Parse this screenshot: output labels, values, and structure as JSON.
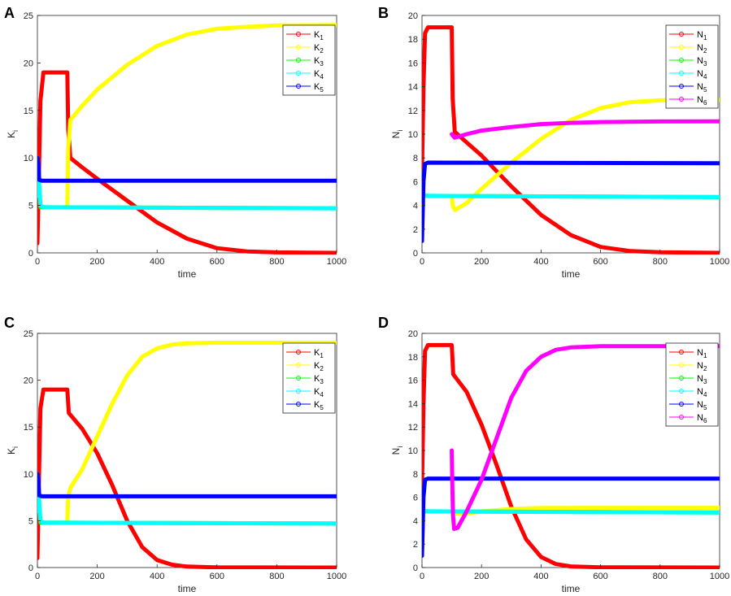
{
  "chart_data": [
    {
      "panel": "A",
      "type": "line",
      "xlabel": "time",
      "ylabel": "K",
      "ylabel_sub": "i",
      "xlim": [
        0,
        1000
      ],
      "ylim": [
        0,
        25
      ],
      "xticks": [
        "0",
        "200",
        "400",
        "600",
        "800",
        "1000"
      ],
      "yticks": [
        "0",
        "5",
        "10",
        "15",
        "20",
        "25"
      ],
      "legend_position": "top-right",
      "series": [
        {
          "name": "K",
          "sub": "1",
          "color": "#ff0000",
          "points": [
            [
              0,
              1
            ],
            [
              5,
              8
            ],
            [
              10,
              16
            ],
            [
              20,
              19
            ],
            [
              100,
              19
            ],
            [
              103,
              13
            ],
            [
              110,
              10
            ],
            [
              150,
              9
            ],
            [
              200,
              7.8
            ],
            [
              300,
              5.5
            ],
            [
              400,
              3.2
            ],
            [
              500,
              1.5
            ],
            [
              600,
              0.5
            ],
            [
              700,
              0.15
            ],
            [
              800,
              0.05
            ],
            [
              1000,
              0
            ]
          ]
        },
        {
          "name": "K",
          "sub": "2",
          "color": "#ffff00",
          "points": [
            [
              100,
              5
            ],
            [
              103,
              11
            ],
            [
              110,
              14
            ],
            [
              150,
              15.5
            ],
            [
              200,
              17.2
            ],
            [
              300,
              19.8
            ],
            [
              400,
              21.8
            ],
            [
              500,
              23
            ],
            [
              600,
              23.6
            ],
            [
              700,
              23.8
            ],
            [
              800,
              23.95
            ],
            [
              1000,
              24
            ]
          ]
        },
        {
          "name": "K",
          "sub": "3",
          "color": "#00ff00",
          "points": [
            [
              0,
              10
            ],
            [
              5,
              7
            ],
            [
              10,
              4.8
            ],
            [
              20,
              4.8
            ],
            [
              1000,
              4.7
            ]
          ]
        },
        {
          "name": "K",
          "sub": "4",
          "color": "#00ffff",
          "points": [
            [
              0,
              10
            ],
            [
              3,
              6
            ],
            [
              6,
              7.2
            ],
            [
              10,
              5
            ],
            [
              20,
              4.8
            ],
            [
              1000,
              4.7
            ]
          ]
        },
        {
          "name": "K",
          "sub": "5",
          "color": "#0000ff",
          "points": [
            [
              0,
              10
            ],
            [
              3,
              9.5
            ],
            [
              6,
              7.7
            ],
            [
              15,
              7.6
            ],
            [
              1000,
              7.6
            ]
          ]
        }
      ]
    },
    {
      "panel": "B",
      "type": "line",
      "xlabel": "time",
      "ylabel": "N",
      "ylabel_sub": "i",
      "xlim": [
        0,
        1000
      ],
      "ylim": [
        0,
        20
      ],
      "xticks": [
        "0",
        "200",
        "400",
        "600",
        "800",
        "1000"
      ],
      "yticks": [
        "0",
        "2",
        "4",
        "6",
        "8",
        "10",
        "12",
        "14",
        "16",
        "18",
        "20"
      ],
      "legend_position": "top-right",
      "series": [
        {
          "name": "N",
          "sub": "1",
          "color": "#ff0000",
          "points": [
            [
              0,
              7
            ],
            [
              5,
              14
            ],
            [
              10,
              18.5
            ],
            [
              20,
              19
            ],
            [
              100,
              19
            ],
            [
              103,
              13
            ],
            [
              110,
              10.2
            ],
            [
              150,
              9.3
            ],
            [
              200,
              8.2
            ],
            [
              300,
              5.6
            ],
            [
              400,
              3.2
            ],
            [
              500,
              1.5
            ],
            [
              600,
              0.5
            ],
            [
              700,
              0.15
            ],
            [
              800,
              0.05
            ],
            [
              1000,
              0
            ]
          ]
        },
        {
          "name": "N",
          "sub": "2",
          "color": "#ffff00",
          "points": [
            [
              100,
              4.8
            ],
            [
              103,
              4
            ],
            [
              110,
              3.6
            ],
            [
              150,
              4.2
            ],
            [
              200,
              5.4
            ],
            [
              300,
              7.6
            ],
            [
              400,
              9.6
            ],
            [
              500,
              11.2
            ],
            [
              600,
              12.2
            ],
            [
              700,
              12.7
            ],
            [
              800,
              12.85
            ],
            [
              1000,
              12.9
            ]
          ]
        },
        {
          "name": "N",
          "sub": "3",
          "color": "#00ff00",
          "points": [
            [
              0,
              4.8
            ],
            [
              1000,
              4.7
            ]
          ]
        },
        {
          "name": "N",
          "sub": "4",
          "color": "#00ffff",
          "points": [
            [
              0,
              4.9
            ],
            [
              20,
              4.8
            ],
            [
              1000,
              4.7
            ]
          ]
        },
        {
          "name": "N",
          "sub": "5",
          "color": "#0000ff",
          "points": [
            [
              0,
              1
            ],
            [
              5,
              6
            ],
            [
              10,
              7.5
            ],
            [
              20,
              7.6
            ],
            [
              1000,
              7.55
            ]
          ]
        },
        {
          "name": "N",
          "sub": "6",
          "color": "#ff00ff",
          "points": [
            [
              100,
              10
            ],
            [
              103,
              9.9
            ],
            [
              110,
              9.7
            ],
            [
              150,
              10
            ],
            [
              200,
              10.3
            ],
            [
              300,
              10.6
            ],
            [
              400,
              10.85
            ],
            [
              500,
              10.95
            ],
            [
              600,
              11.02
            ],
            [
              700,
              11.05
            ],
            [
              800,
              11.07
            ],
            [
              1000,
              11.08
            ]
          ]
        }
      ]
    },
    {
      "panel": "C",
      "type": "line",
      "xlabel": "time",
      "ylabel": "K",
      "ylabel_sub": "i",
      "xlim": [
        0,
        1000
      ],
      "ylim": [
        0,
        25
      ],
      "xticks": [
        "0",
        "200",
        "400",
        "600",
        "800",
        "1000"
      ],
      "yticks": [
        "0",
        "5",
        "10",
        "15",
        "20",
        "25"
      ],
      "legend_position": "top-right",
      "series": [
        {
          "name": "K",
          "sub": "1",
          "color": "#ff0000",
          "points": [
            [
              0,
              1
            ],
            [
              5,
              9
            ],
            [
              10,
              17
            ],
            [
              20,
              19
            ],
            [
              100,
              19
            ],
            [
              105,
              16.5
            ],
            [
              150,
              14.8
            ],
            [
              200,
              12.2
            ],
            [
              250,
              8.8
            ],
            [
              300,
              5
            ],
            [
              350,
              2.2
            ],
            [
              400,
              0.8
            ],
            [
              450,
              0.3
            ],
            [
              500,
              0.1
            ],
            [
              600,
              0.02
            ],
            [
              1000,
              0
            ]
          ]
        },
        {
          "name": "K",
          "sub": "2",
          "color": "#ffff00",
          "points": [
            [
              100,
              5
            ],
            [
              103,
              7.5
            ],
            [
              110,
              8.5
            ],
            [
              150,
              10.5
            ],
            [
              200,
              14
            ],
            [
              250,
              17.5
            ],
            [
              300,
              20.5
            ],
            [
              350,
              22.5
            ],
            [
              400,
              23.4
            ],
            [
              450,
              23.8
            ],
            [
              500,
              23.95
            ],
            [
              600,
              24
            ],
            [
              1000,
              24
            ]
          ]
        },
        {
          "name": "K",
          "sub": "3",
          "color": "#00ff00",
          "points": [
            [
              0,
              10
            ],
            [
              5,
              7
            ],
            [
              10,
              4.8
            ],
            [
              20,
              4.8
            ],
            [
              1000,
              4.7
            ]
          ]
        },
        {
          "name": "K",
          "sub": "4",
          "color": "#00ffff",
          "points": [
            [
              0,
              10
            ],
            [
              3,
              6
            ],
            [
              6,
              7.2
            ],
            [
              10,
              5
            ],
            [
              20,
              4.8
            ],
            [
              1000,
              4.7
            ]
          ]
        },
        {
          "name": "K",
          "sub": "5",
          "color": "#0000ff",
          "points": [
            [
              0,
              10
            ],
            [
              3,
              9.5
            ],
            [
              6,
              7.7
            ],
            [
              15,
              7.6
            ],
            [
              1000,
              7.6
            ]
          ]
        }
      ]
    },
    {
      "panel": "D",
      "type": "line",
      "xlabel": "time",
      "ylabel": "N",
      "ylabel_sub": "i",
      "xlim": [
        0,
        1000
      ],
      "ylim": [
        0,
        20
      ],
      "xticks": [
        "0",
        "200",
        "400",
        "600",
        "800",
        "1000"
      ],
      "yticks": [
        "0",
        "2",
        "4",
        "6",
        "8",
        "10",
        "12",
        "14",
        "16",
        "18",
        "20"
      ],
      "legend_position": "top-right",
      "series": [
        {
          "name": "N",
          "sub": "1",
          "color": "#ff0000",
          "points": [
            [
              0,
              7
            ],
            [
              5,
              14
            ],
            [
              10,
              18.5
            ],
            [
              20,
              19
            ],
            [
              100,
              19
            ],
            [
              105,
              16.5
            ],
            [
              150,
              15
            ],
            [
              200,
              12.2
            ],
            [
              250,
              8.8
            ],
            [
              300,
              5.2
            ],
            [
              350,
              2.4
            ],
            [
              400,
              0.9
            ],
            [
              450,
              0.3
            ],
            [
              500,
              0.1
            ],
            [
              600,
              0.02
            ],
            [
              1000,
              0
            ]
          ]
        },
        {
          "name": "N",
          "sub": "2",
          "color": "#ffff00",
          "points": [
            [
              100,
              4.8
            ],
            [
              110,
              4.6
            ],
            [
              150,
              4.6
            ],
            [
              200,
              4.8
            ],
            [
              300,
              5
            ],
            [
              400,
              5.08
            ],
            [
              600,
              5.1
            ],
            [
              1000,
              5.1
            ]
          ]
        },
        {
          "name": "N",
          "sub": "3",
          "color": "#00ff00",
          "points": [
            [
              0,
              4.8
            ],
            [
              1000,
              4.7
            ]
          ]
        },
        {
          "name": "N",
          "sub": "4",
          "color": "#00ffff",
          "points": [
            [
              0,
              4.9
            ],
            [
              20,
              4.8
            ],
            [
              1000,
              4.7
            ]
          ]
        },
        {
          "name": "N",
          "sub": "5",
          "color": "#0000ff",
          "points": [
            [
              0,
              1
            ],
            [
              5,
              6
            ],
            [
              10,
              7.5
            ],
            [
              20,
              7.6
            ],
            [
              1000,
              7.6
            ]
          ]
        },
        {
          "name": "N",
          "sub": "6",
          "color": "#ff00ff",
          "points": [
            [
              100,
              10
            ],
            [
              102,
              7
            ],
            [
              104,
              4.5
            ],
            [
              108,
              3.3
            ],
            [
              120,
              3.4
            ],
            [
              150,
              4.8
            ],
            [
              200,
              7.5
            ],
            [
              250,
              11
            ],
            [
              300,
              14.5
            ],
            [
              350,
              16.8
            ],
            [
              400,
              18
            ],
            [
              450,
              18.6
            ],
            [
              500,
              18.8
            ],
            [
              600,
              18.9
            ],
            [
              1000,
              18.9
            ]
          ]
        }
      ]
    }
  ]
}
